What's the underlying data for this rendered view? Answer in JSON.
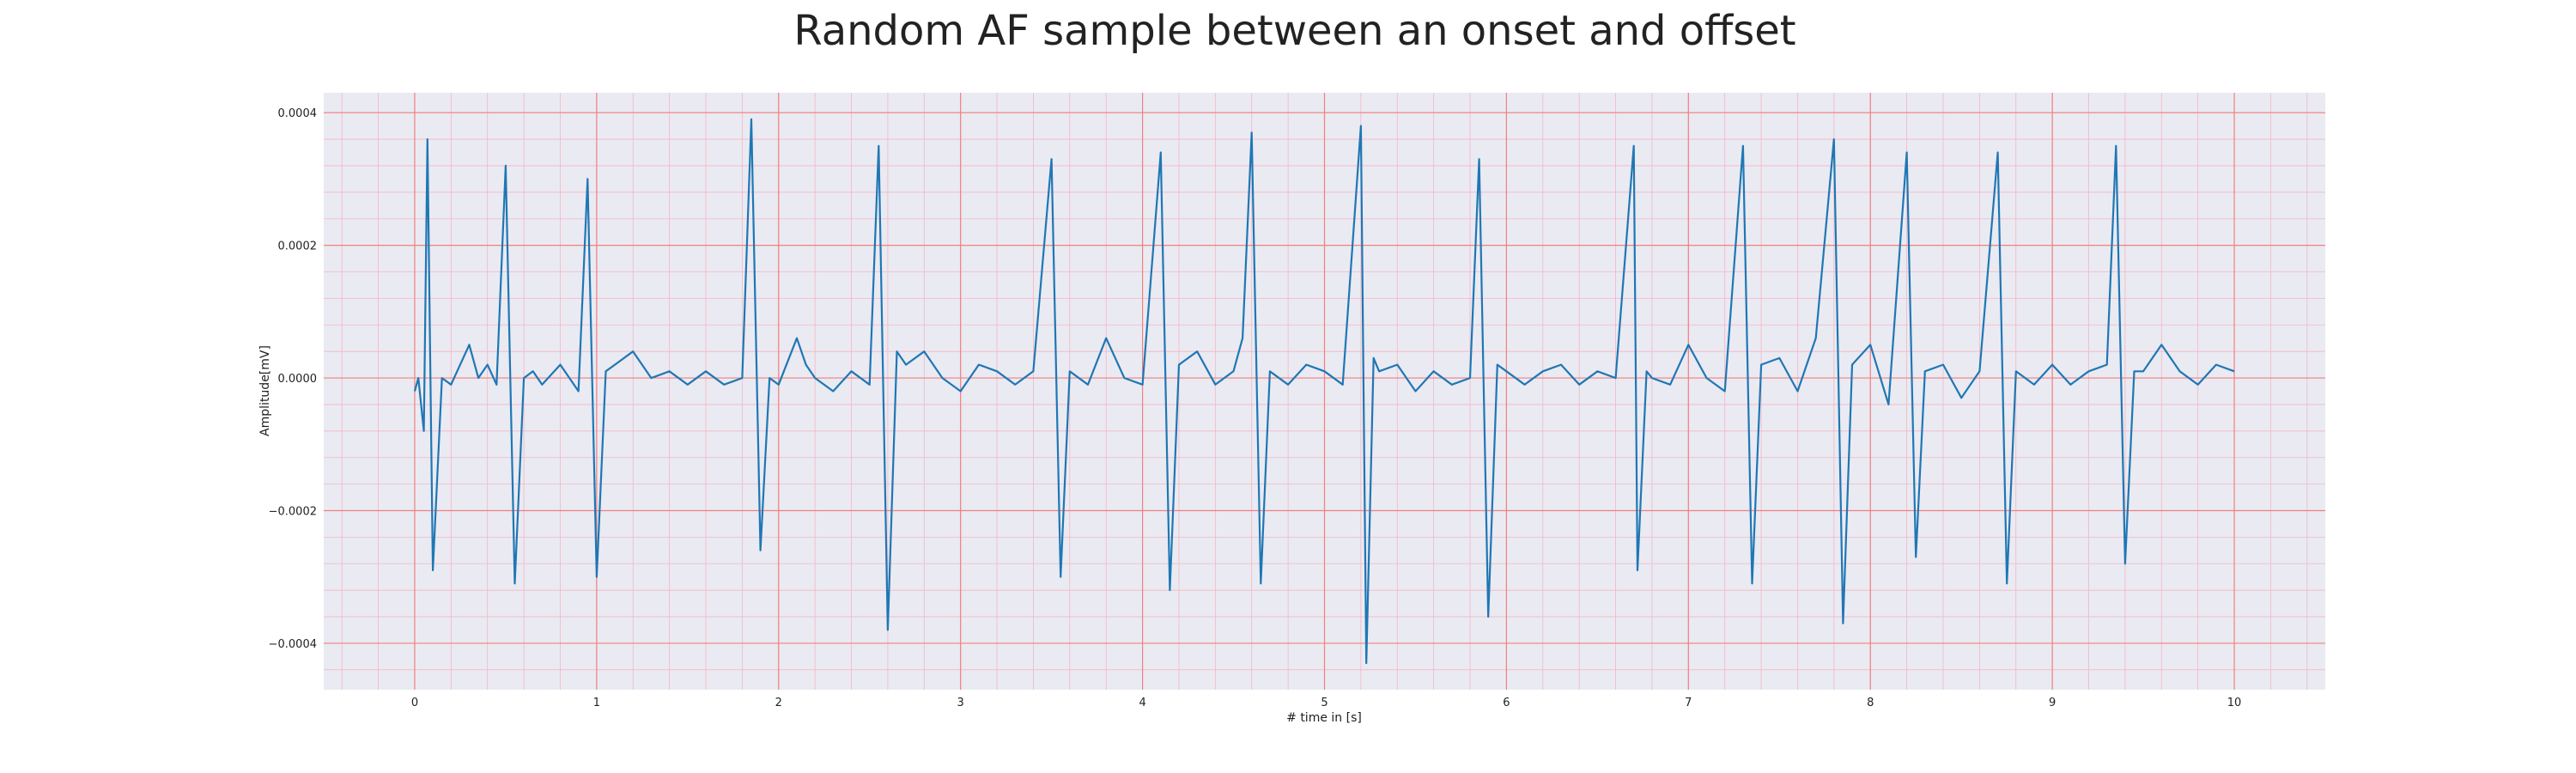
{
  "chart_data": {
    "type": "line",
    "title": "Random AF sample between an onset and offset",
    "xlabel": "# time in [s]",
    "ylabel": "Amplitude[mV]",
    "xlim": [
      -0.5,
      10.5
    ],
    "ylim": [
      -0.00047,
      0.00043
    ],
    "xticks": [
      0,
      1,
      2,
      3,
      4,
      5,
      6,
      7,
      8,
      9,
      10
    ],
    "xtick_labels": [
      "0",
      "1",
      "2",
      "3",
      "4",
      "5",
      "6",
      "7",
      "8",
      "9",
      "10"
    ],
    "yticks": [
      -0.0004,
      -0.0002,
      0.0,
      0.0002,
      0.0004
    ],
    "ytick_labels": [
      "−0.0004",
      "−0.0002",
      "0.0000",
      "0.0002",
      "0.0004"
    ],
    "grid": true,
    "minor_grid": true,
    "colors": {
      "line": "#1f77b4",
      "plot_bg": "#eaeaf2",
      "major_grid": "#f08080",
      "minor_grid": "#f4b6c2"
    },
    "series": [
      {
        "x": [
          0.0,
          0.02,
          0.05,
          0.07,
          0.1,
          0.15,
          0.2,
          0.3,
          0.35,
          0.4,
          0.45,
          0.5,
          0.55,
          0.6,
          0.65,
          0.7,
          0.8,
          0.9,
          0.95,
          1.0,
          1.05,
          1.1,
          1.2,
          1.3,
          1.4,
          1.5,
          1.6,
          1.7,
          1.8,
          1.85,
          1.9,
          1.95,
          2.0,
          2.1,
          2.15,
          2.2,
          2.3,
          2.4,
          2.5,
          2.55,
          2.6,
          2.65,
          2.7,
          2.8,
          2.9,
          3.0,
          3.1,
          3.2,
          3.3,
          3.4,
          3.5,
          3.55,
          3.6,
          3.7,
          3.8,
          3.9,
          4.0,
          4.1,
          4.15,
          4.2,
          4.3,
          4.4,
          4.5,
          4.55,
          4.6,
          4.65,
          4.7,
          4.8,
          4.9,
          5.0,
          5.1,
          5.2,
          5.23,
          5.27,
          5.3,
          5.4,
          5.5,
          5.6,
          5.7,
          5.8,
          5.85,
          5.9,
          5.95,
          6.0,
          6.1,
          6.2,
          6.3,
          6.4,
          6.5,
          6.6,
          6.7,
          6.72,
          6.77,
          6.8,
          6.9,
          7.0,
          7.1,
          7.2,
          7.3,
          7.35,
          7.4,
          7.5,
          7.6,
          7.7,
          7.8,
          7.85,
          7.9,
          8.0,
          8.1,
          8.2,
          8.25,
          8.3,
          8.4,
          8.5,
          8.6,
          8.7,
          8.75,
          8.8,
          8.9,
          9.0,
          9.1,
          9.2,
          9.3,
          9.35,
          9.4,
          9.45,
          9.5,
          9.6,
          9.7,
          9.8,
          9.9,
          10.0
        ],
        "y": [
          -2e-05,
          0.0,
          -8e-05,
          0.00036,
          -0.00029,
          0.0,
          -1e-05,
          5e-05,
          0.0,
          2e-05,
          -1e-05,
          0.00032,
          -0.00031,
          0.0,
          1e-05,
          -1e-05,
          2e-05,
          -2e-05,
          0.0003,
          -0.0003,
          1e-05,
          2e-05,
          4e-05,
          0.0,
          1e-05,
          -1e-05,
          1e-05,
          -1e-05,
          0.0,
          0.00039,
          -0.00026,
          0.0,
          -1e-05,
          6e-05,
          2e-05,
          0.0,
          -2e-05,
          1e-05,
          -1e-05,
          0.00035,
          -0.00038,
          4e-05,
          2e-05,
          4e-05,
          0.0,
          -2e-05,
          2e-05,
          1e-05,
          -1e-05,
          1e-05,
          0.00033,
          -0.0003,
          1e-05,
          -1e-05,
          6e-05,
          0.0,
          -1e-05,
          0.00034,
          -0.00032,
          2e-05,
          4e-05,
          -1e-05,
          1e-05,
          6e-05,
          0.00037,
          -0.00031,
          1e-05,
          -1e-05,
          2e-05,
          1e-05,
          -1e-05,
          0.00038,
          -0.00043,
          3e-05,
          1e-05,
          2e-05,
          -2e-05,
          1e-05,
          -1e-05,
          0.0,
          0.00033,
          -0.00036,
          2e-05,
          1e-05,
          -1e-05,
          1e-05,
          2e-05,
          -1e-05,
          1e-05,
          0.0,
          0.00035,
          -0.00029,
          1e-05,
          0.0,
          -1e-05,
          5e-05,
          0.0,
          -2e-05,
          0.00035,
          -0.00031,
          2e-05,
          3e-05,
          -2e-05,
          6e-05,
          0.00036,
          -0.00037,
          2e-05,
          5e-05,
          -4e-05,
          0.00034,
          -0.00027,
          1e-05,
          2e-05,
          -3e-05,
          1e-05,
          0.00034,
          -0.00031,
          1e-05,
          -1e-05,
          2e-05,
          -1e-05,
          1e-05,
          2e-05,
          0.00035,
          -0.00028,
          1e-05,
          1e-05,
          5e-05,
          1e-05,
          -1e-05,
          2e-05,
          1e-05
        ]
      }
    ]
  }
}
